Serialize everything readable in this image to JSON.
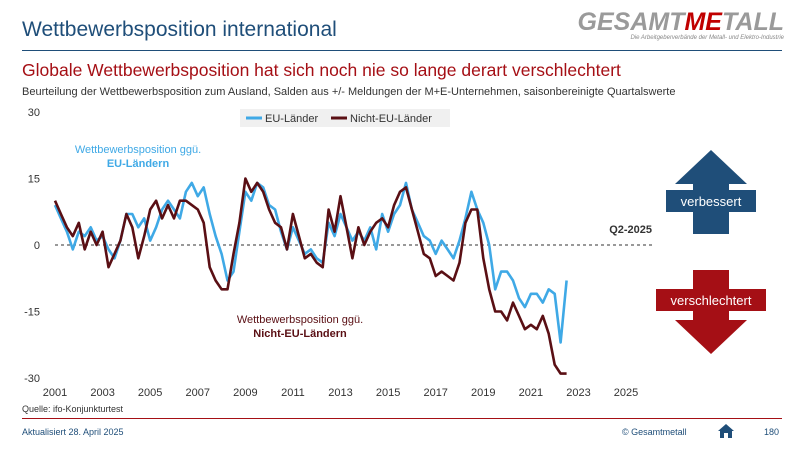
{
  "header": {
    "title": "Wettbewerbsposition international",
    "logo_part1": "GESAMT",
    "logo_part2": "ME",
    "logo_part3": "TALL",
    "logo_tagline": "Die Arbeitgeberverbände der Metall- und Elektro-Industrie"
  },
  "headline": "Globale Wettbewerbsposition hat sich noch nie so lange derart verschlechtert",
  "subline": "Beurteilung der Wettbewerbsposition zum Ausland, Salden aus +/- Meldungen der M+E-Unternehmen, saisonbereinigte Quartalswerte",
  "source": "Quelle: ifo-Konjunkturtest",
  "footer": {
    "updated": "Aktualisiert 28. April 2025",
    "copyright": "© Gesamtmetall",
    "page": "180"
  },
  "colors": {
    "eu": "#3fa9e6",
    "non_eu": "#5a0f14",
    "up": "#1f4e79",
    "down": "#a50f15"
  },
  "chart_data": {
    "type": "line",
    "title": "",
    "xlabel": "",
    "ylabel": "",
    "x_start": 2001,
    "quarters_per_year": 4,
    "ylim": [
      -30,
      30
    ],
    "yticks": [
      "30",
      "15",
      "0",
      "-15",
      "-30"
    ],
    "ytick_values": [
      30,
      15,
      0,
      -15,
      -30
    ],
    "xticks": [
      "2001",
      "2003",
      "2005",
      "2007",
      "2009",
      "2011",
      "2013",
      "2015",
      "2017",
      "2019",
      "2021",
      "2023",
      "2025"
    ],
    "legend_position": "top",
    "series": [
      {
        "name": "EU-Länder",
        "values": [
          9,
          6,
          3,
          -1,
          3,
          2,
          4,
          1,
          2,
          -1,
          -3,
          1,
          7,
          7,
          4,
          6,
          1,
          4,
          8,
          10,
          8,
          6,
          12,
          14,
          11,
          13,
          7,
          2,
          -2,
          -8,
          -6,
          3,
          12,
          10,
          14,
          13,
          9,
          8,
          3,
          -1,
          4,
          1,
          -2,
          -1,
          -3,
          -4,
          5,
          2,
          7,
          4,
          1,
          3,
          1,
          4,
          -1,
          7,
          3,
          7,
          9,
          14,
          8,
          5,
          2,
          1,
          -2,
          1,
          -1,
          -3,
          1,
          6,
          12,
          8,
          5,
          0,
          -10,
          -6,
          -6,
          -8,
          -12,
          -14,
          -11,
          -11,
          -13,
          -10,
          -11,
          -22,
          -8
        ],
        "annotation_title": "Wettbewerbsposition ggü.",
        "annotation_bold": "EU-Ländern"
      },
      {
        "name": "Nicht-EU-Länder",
        "values": [
          10,
          7,
          4,
          2,
          5,
          -1,
          3,
          0,
          3,
          -5,
          -2,
          1,
          7,
          4,
          -3,
          2,
          8,
          10,
          6,
          9,
          6,
          10,
          10,
          9,
          8,
          5,
          -5,
          -8,
          -10,
          -10,
          -2,
          5,
          15,
          12,
          14,
          12,
          8,
          5,
          4,
          -1,
          7,
          2,
          -3,
          -2,
          -4,
          -5,
          8,
          3,
          11,
          4,
          -3,
          4,
          0,
          3,
          5,
          6,
          4,
          9,
          12,
          13,
          8,
          3,
          -2,
          -3,
          -7,
          -6,
          -7,
          -8,
          -4,
          5,
          8,
          8,
          -3,
          -10,
          -15,
          -15,
          -17,
          -13,
          -16,
          -19,
          -18,
          -19,
          -16,
          -20,
          -27,
          -29,
          -29
        ],
        "annotation_title": "Wettbewerbsposition ggü.",
        "annotation_bold": "Nicht-EU-Ländern"
      }
    ],
    "zero_line_label": "Q2-2025",
    "arrow_up_label": "verbessert",
    "arrow_down_label": "verschlechtert"
  }
}
